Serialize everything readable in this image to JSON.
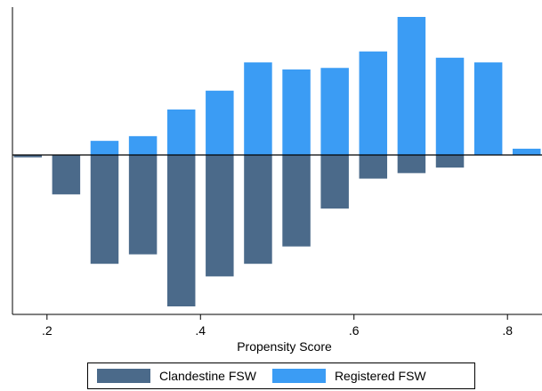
{
  "chart_data": {
    "type": "bar",
    "xlabel": "Propensity Score",
    "xlim": [
      0.155,
      0.845
    ],
    "xticks": [
      0.2,
      0.4,
      0.6,
      0.8
    ],
    "xtick_labels": [
      ".2",
      ".4",
      ".6",
      ".8"
    ],
    "bin_width": 0.04,
    "ylim": [
      -1.0,
      0.92
    ],
    "series": [
      {
        "name": "Clandestine FSW",
        "color": "#4b6a8a",
        "bins": [
          0.175,
          0.225,
          0.275,
          0.325,
          0.375,
          0.425,
          0.475,
          0.525,
          0.575,
          0.625,
          0.675,
          0.725
        ],
        "values": [
          -0.015,
          -0.25,
          -0.69,
          -0.63,
          -0.96,
          -0.77,
          -0.69,
          -0.58,
          -0.34,
          -0.15,
          -0.115,
          -0.08
        ]
      },
      {
        "name": "Registered FSW",
        "color": "#3b9cf4",
        "bins": [
          0.275,
          0.325,
          0.375,
          0.425,
          0.475,
          0.525,
          0.575,
          0.625,
          0.675,
          0.725,
          0.775,
          0.825
        ],
        "values": [
          0.09,
          0.12,
          0.29,
          0.41,
          0.59,
          0.545,
          0.555,
          0.66,
          0.88,
          0.62,
          0.59,
          0.04
        ]
      }
    ],
    "legend": [
      "Clandestine FSW",
      "Registered FSW"
    ],
    "legend_position": "bottom",
    "grid": false
  }
}
